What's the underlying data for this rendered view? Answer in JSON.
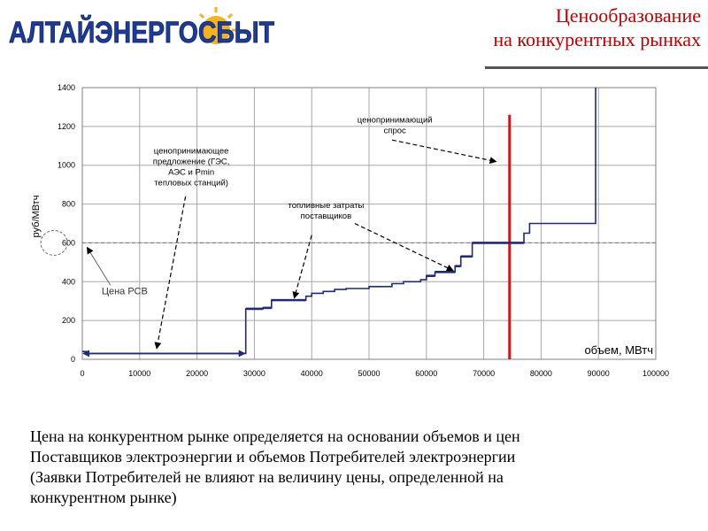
{
  "header": {
    "logo_text": "АЛТАЙЭНЕРГОСБЫТ",
    "title_lines": [
      "Ценообразование",
      "на конкурентных рынках"
    ],
    "colors": {
      "logo_blue": "#1d3c9a",
      "logo_sun": "#f5b21c",
      "title": "#c00000"
    }
  },
  "chart_data": {
    "type": "line",
    "xlabel": "объем, МВтч",
    "ylabel": "руб/МВтч",
    "xlim": [
      0,
      100000
    ],
    "ylim": [
      0,
      1400
    ],
    "x_ticks": [
      "0",
      "10000",
      "20000",
      "30000",
      "40000",
      "50000",
      "60000",
      "70000",
      "80000",
      "90000",
      "100000"
    ],
    "y_ticks": [
      "0",
      "200",
      "400",
      "600",
      "800",
      "1000",
      "1200",
      "1400"
    ],
    "grid": true,
    "series": [
      {
        "name": "предложение",
        "color": "#1f2a78",
        "points": [
          [
            0,
            40
          ],
          [
            800,
            40
          ],
          [
            800,
            30
          ],
          [
            28500,
            30
          ],
          [
            28500,
            260
          ],
          [
            31500,
            260
          ],
          [
            31500,
            265
          ],
          [
            33000,
            265
          ],
          [
            33000,
            305
          ],
          [
            39000,
            305
          ],
          [
            39000,
            325
          ],
          [
            40000,
            325
          ],
          [
            40000,
            340
          ],
          [
            42000,
            340
          ],
          [
            42000,
            350
          ],
          [
            44000,
            350
          ],
          [
            44000,
            360
          ],
          [
            46000,
            360
          ],
          [
            46000,
            365
          ],
          [
            50000,
            365
          ],
          [
            50000,
            375
          ],
          [
            54000,
            375
          ],
          [
            54000,
            390
          ],
          [
            56000,
            390
          ],
          [
            56000,
            400
          ],
          [
            59000,
            400
          ],
          [
            59000,
            410
          ],
          [
            60000,
            410
          ],
          [
            60000,
            430
          ],
          [
            61500,
            430
          ],
          [
            61500,
            450
          ],
          [
            65000,
            450
          ],
          [
            65000,
            480
          ],
          [
            66000,
            480
          ],
          [
            66000,
            530
          ],
          [
            68000,
            530
          ],
          [
            68000,
            600
          ],
          [
            77000,
            600
          ],
          [
            77000,
            650
          ],
          [
            78000,
            650
          ],
          [
            78000,
            700
          ],
          [
            89500,
            700
          ],
          [
            89500,
            1400
          ]
        ]
      }
    ],
    "reference_lines": [
      {
        "type": "horizontal",
        "y": 600,
        "style": "dashed",
        "color": "#777777"
      },
      {
        "type": "vertical",
        "x": 74500,
        "y_top": 1260,
        "color": "#d0161d"
      }
    ],
    "annotations": [
      {
        "text": [
          "ценопринимающее",
          "предложение (ГЭС,",
          "АЭС и Pmin",
          "тепловых станций)"
        ],
        "x": 19000,
        "y": 1060,
        "arrow_from": [
          18000,
          840
        ],
        "arrow_to": [
          13000,
          60
        ]
      },
      {
        "text": [
          "ценопринимающий",
          "спрос"
        ],
        "x": 54500,
        "y": 1220,
        "arrow_from": [
          54000,
          1130
        ],
        "arrow_to": [
          72000,
          1020
        ]
      },
      {
        "text": [
          "топливные затраты",
          "поставщиков"
        ],
        "x": 42500,
        "y": 780,
        "arrow_from": [
          40000,
          640
        ],
        "arrow_to": [
          37000,
          320
        ],
        "arrow2_from": [
          47500,
          700
        ],
        "arrow2_to": [
          64500,
          460
        ]
      }
    ],
    "double_arrow": {
      "x1": 0,
      "x2": 28500,
      "y": 30
    },
    "price_label": {
      "text": "Цена РСВ",
      "x": 8000,
      "y": 290
    },
    "ellipse_marker": {
      "x": -4000,
      "y": 600
    }
  },
  "body_text": [
    "Цена на конкурентном рынке определяется на основании объемов и цен",
    "Поставщиков электроэнергии и объемов Потребителей электроэнергии",
    "(Заявки Потребителей не влияют на величину цены, определенной на",
    "конкурентном рынке)"
  ]
}
